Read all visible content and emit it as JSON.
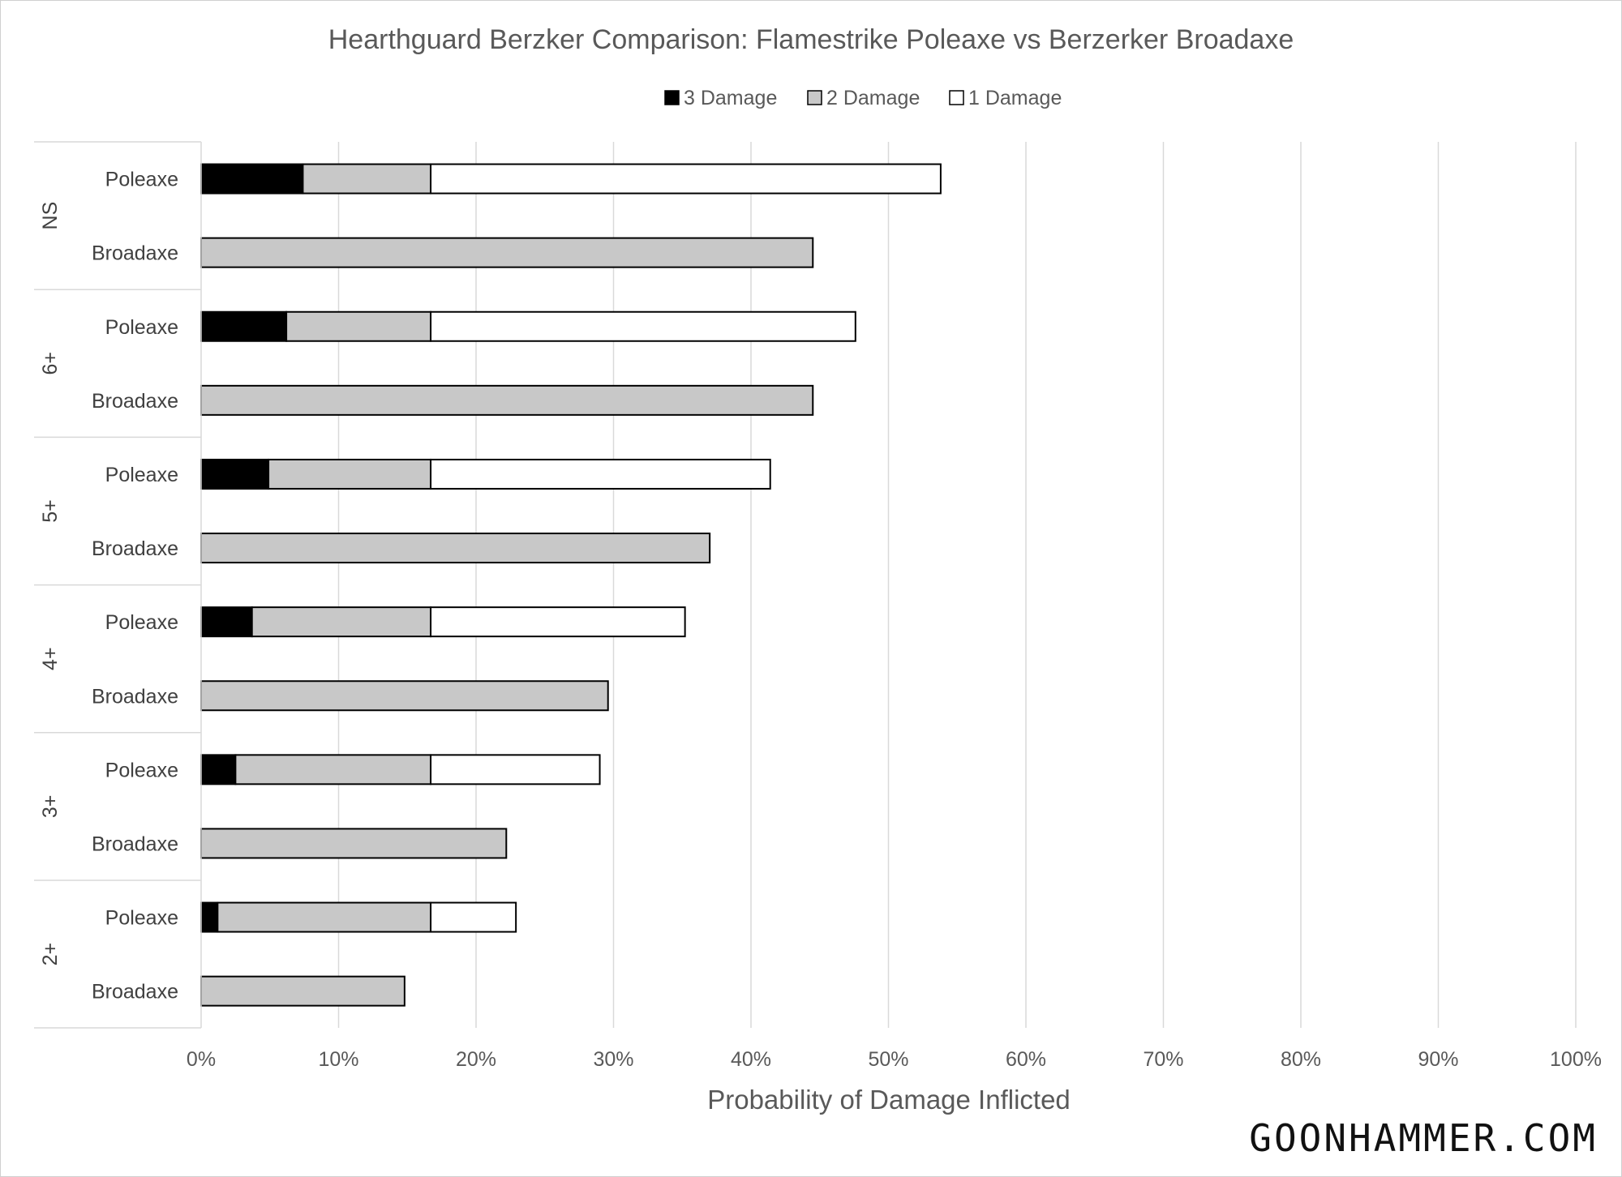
{
  "title": "Hearthguard Berzker Comparison: Flamestrike Poleaxe vs Berzerker Broadaxe",
  "brand": "GOONHAMMER.COM",
  "chart_data": {
    "type": "bar",
    "orientation": "horizontal",
    "stacked": true,
    "title": "Hearthguard Berzker Comparison: Flamestrike Poleaxe vs Berzerker Broadaxe",
    "xlabel": "Probability of Damage Inflicted",
    "ylabel": "",
    "xlim": [
      0,
      100
    ],
    "x_ticks": [
      "0%",
      "10%",
      "20%",
      "30%",
      "40%",
      "50%",
      "60%",
      "70%",
      "80%",
      "90%",
      "100%"
    ],
    "grid": "vertical",
    "legend_position": "top",
    "legend": [
      {
        "name": "3 Damage",
        "color": "#000000"
      },
      {
        "name": "2 Damage",
        "color": "#c8c8c8"
      },
      {
        "name": "1 Damage",
        "color": "#ffffff"
      }
    ],
    "groups": [
      {
        "label": "NS",
        "rows": [
          {
            "label": "Poleaxe",
            "values": [
              7.4,
              9.3,
              37.1
            ]
          },
          {
            "label": "Broadaxe",
            "values": [
              0,
              44.5,
              0
            ]
          }
        ]
      },
      {
        "label": "6+",
        "rows": [
          {
            "label": "Poleaxe",
            "values": [
              6.2,
              10.5,
              30.9
            ]
          },
          {
            "label": "Broadaxe",
            "values": [
              0,
              44.5,
              0
            ]
          }
        ]
      },
      {
        "label": "5+",
        "rows": [
          {
            "label": "Poleaxe",
            "values": [
              4.9,
              11.8,
              24.7
            ]
          },
          {
            "label": "Broadaxe",
            "values": [
              0,
              37.0,
              0
            ]
          }
        ]
      },
      {
        "label": "4+",
        "rows": [
          {
            "label": "Poleaxe",
            "values": [
              3.7,
              13.0,
              18.5
            ]
          },
          {
            "label": "Broadaxe",
            "values": [
              0,
              29.6,
              0
            ]
          }
        ]
      },
      {
        "label": "3+",
        "rows": [
          {
            "label": "Poleaxe",
            "values": [
              2.5,
              14.2,
              12.3
            ]
          },
          {
            "label": "Broadaxe",
            "values": [
              0,
              22.2,
              0
            ]
          }
        ]
      },
      {
        "label": "2+",
        "rows": [
          {
            "label": "Poleaxe",
            "values": [
              1.2,
              15.5,
              6.2
            ]
          },
          {
            "label": "Broadaxe",
            "values": [
              0,
              14.8,
              0
            ]
          }
        ]
      }
    ]
  }
}
